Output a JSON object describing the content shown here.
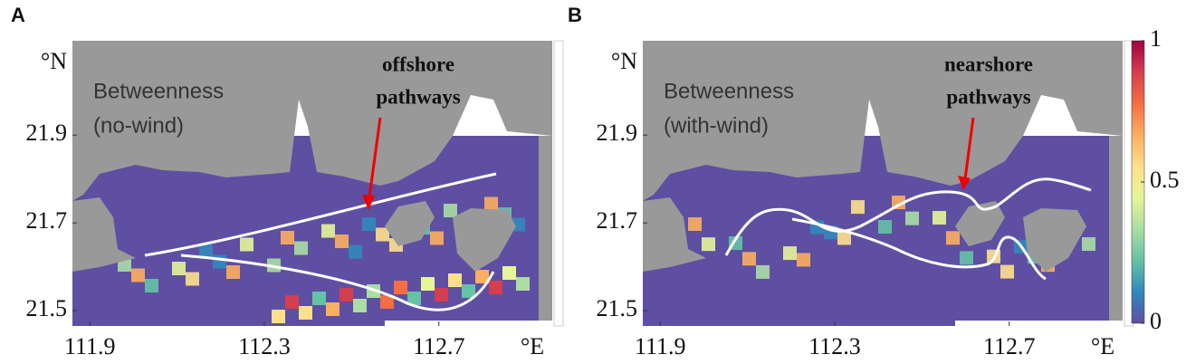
{
  "panels": [
    {
      "label": "A",
      "annotation": [
        "Betweenness",
        "(no-wind)"
      ],
      "callout": [
        "offshore",
        "pathways"
      ],
      "xlim": [
        111.86,
        112.96
      ],
      "xticks": [
        111.9,
        112.3,
        112.7
      ],
      "x_unit": "°E",
      "ylim": [
        21.465,
        22.115
      ],
      "yticks": [
        21.5,
        21.7,
        21.9
      ],
      "y_unit": "°N"
    },
    {
      "label": "B",
      "annotation": [
        "Betweenness",
        "(with-wind)"
      ],
      "callout": [
        "nearshore",
        "pathways"
      ],
      "xlim": [
        111.86,
        112.96
      ],
      "xticks": [
        111.9,
        112.3,
        112.7
      ],
      "x_unit": "°E",
      "ylim": [
        21.465,
        22.115
      ],
      "yticks": [
        21.5,
        21.7,
        21.9
      ],
      "y_unit": "°N"
    }
  ],
  "colorbar": {
    "lim": [
      0,
      1
    ],
    "ticks": [
      0,
      0.5,
      1
    ],
    "colormap": [
      "#5e4fa2",
      "#3288bd",
      "#66c2a5",
      "#abdda4",
      "#e6f598",
      "#fee08b",
      "#fdae61",
      "#f46d43",
      "#d53e4f",
      "#9e0142"
    ]
  }
}
